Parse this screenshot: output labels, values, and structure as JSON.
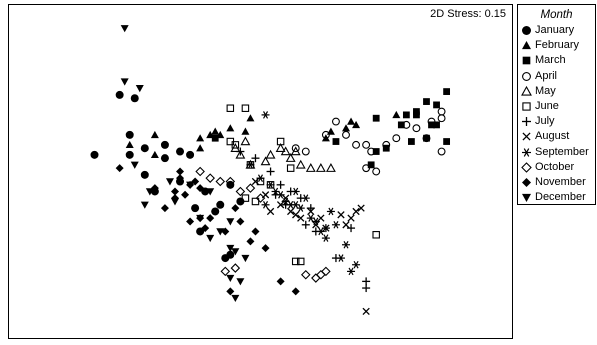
{
  "chart_data": {
    "type": "scatter",
    "annotation": "2D Stress: 0.15",
    "legend_title": "Month",
    "legend_position": "right",
    "grid": false,
    "xlim": [
      0,
      100
    ],
    "ylim": [
      0,
      100
    ],
    "series": [
      {
        "name": "January",
        "marker": "circle-filled",
        "points": [
          [
            22,
            73
          ],
          [
            25,
            72
          ],
          [
            17,
            55
          ],
          [
            24,
            61
          ],
          [
            27,
            57
          ],
          [
            24,
            55
          ],
          [
            27,
            49
          ],
          [
            29,
            44
          ],
          [
            31,
            54
          ],
          [
            34,
            47
          ],
          [
            31,
            58
          ],
          [
            34,
            56
          ],
          [
            37,
            39
          ],
          [
            39,
            44
          ],
          [
            38,
            32
          ],
          [
            41,
            38
          ],
          [
            44,
            46
          ],
          [
            44,
            25
          ],
          [
            46,
            41
          ],
          [
            43,
            24
          ],
          [
            42,
            40
          ],
          [
            36,
            55
          ]
        ]
      },
      {
        "name": "February",
        "marker": "triangle-filled",
        "points": [
          [
            24,
            58
          ],
          [
            29,
            61
          ],
          [
            29,
            55
          ],
          [
            38,
            60
          ],
          [
            40,
            61
          ],
          [
            41,
            62
          ],
          [
            42,
            61
          ],
          [
            44,
            63
          ],
          [
            47,
            62
          ],
          [
            48,
            66
          ],
          [
            63,
            60
          ],
          [
            64,
            62
          ],
          [
            67,
            63
          ],
          [
            68,
            65
          ],
          [
            69,
            64
          ],
          [
            77,
            67
          ],
          [
            38,
            57
          ]
        ]
      },
      {
        "name": "March",
        "marker": "square-filled",
        "points": [
          [
            41,
            60
          ],
          [
            65,
            59
          ],
          [
            73,
            56
          ],
          [
            72,
            52
          ],
          [
            80,
            59
          ],
          [
            83,
            60
          ],
          [
            84,
            64
          ],
          [
            81,
            68
          ],
          [
            83,
            71
          ],
          [
            85,
            70
          ],
          [
            87,
            74
          ],
          [
            85,
            64
          ],
          [
            87,
            59
          ],
          [
            79,
            67
          ],
          [
            81,
            67
          ],
          [
            75,
            57
          ],
          [
            73,
            66
          ],
          [
            78,
            64
          ]
        ]
      },
      {
        "name": "April",
        "marker": "circle-open",
        "points": [
          [
            59,
            56
          ],
          [
            63,
            61
          ],
          [
            65,
            65
          ],
          [
            67,
            61
          ],
          [
            69,
            58
          ],
          [
            71,
            58
          ],
          [
            72,
            56
          ],
          [
            75,
            58
          ],
          [
            77,
            60
          ],
          [
            79,
            64
          ],
          [
            81,
            63
          ],
          [
            83,
            60
          ],
          [
            84,
            65
          ],
          [
            86,
            66
          ],
          [
            86,
            68
          ],
          [
            57,
            57
          ],
          [
            71,
            51
          ],
          [
            73,
            50
          ],
          [
            86,
            56
          ]
        ]
      },
      {
        "name": "May",
        "marker": "triangle-open",
        "points": [
          [
            45,
            57
          ],
          [
            48,
            52
          ],
          [
            51,
            53
          ],
          [
            52,
            55
          ],
          [
            54,
            57
          ],
          [
            56,
            54
          ],
          [
            57,
            56
          ],
          [
            58,
            52
          ],
          [
            60,
            51
          ],
          [
            62,
            51
          ],
          [
            64,
            51
          ],
          [
            47,
            59
          ],
          [
            55,
            56
          ],
          [
            46,
            55
          ]
        ]
      },
      {
        "name": "June",
        "marker": "square-open",
        "points": [
          [
            44,
            69
          ],
          [
            47,
            69
          ],
          [
            44,
            59
          ],
          [
            45,
            58
          ],
          [
            54,
            59
          ],
          [
            56,
            51
          ],
          [
            47,
            42
          ],
          [
            49,
            41
          ],
          [
            50,
            47
          ],
          [
            52,
            46
          ],
          [
            57,
            23
          ],
          [
            58,
            23
          ],
          [
            73,
            31
          ],
          [
            48,
            52
          ]
        ]
      },
      {
        "name": "July",
        "marker": "plus",
        "points": [
          [
            46,
            56
          ],
          [
            49,
            54
          ],
          [
            52,
            50
          ],
          [
            54,
            46
          ],
          [
            56,
            44
          ],
          [
            58,
            42
          ],
          [
            60,
            39
          ],
          [
            59,
            34
          ],
          [
            61,
            32
          ],
          [
            63,
            33
          ],
          [
            65,
            24
          ],
          [
            71,
            17
          ],
          [
            71,
            15
          ],
          [
            68,
            33
          ],
          [
            55,
            40
          ],
          [
            53,
            43
          ]
        ]
      },
      {
        "name": "August",
        "marker": "x",
        "points": [
          [
            49,
            47
          ],
          [
            51,
            43
          ],
          [
            55,
            42
          ],
          [
            56,
            38
          ],
          [
            57,
            37
          ],
          [
            58,
            36
          ],
          [
            60,
            38
          ],
          [
            61,
            34
          ],
          [
            63,
            33
          ],
          [
            66,
            37
          ],
          [
            70,
            39
          ],
          [
            69,
            38
          ],
          [
            68,
            36
          ],
          [
            67,
            34
          ],
          [
            71,
            8
          ],
          [
            52,
            38
          ],
          [
            54,
            40
          ],
          [
            62,
            36
          ]
        ]
      },
      {
        "name": "September",
        "marker": "asterisk",
        "points": [
          [
            51,
            67
          ],
          [
            48,
            52
          ],
          [
            50,
            48
          ],
          [
            52,
            46
          ],
          [
            53,
            44
          ],
          [
            54,
            43
          ],
          [
            55,
            41
          ],
          [
            56,
            40
          ],
          [
            57,
            40
          ],
          [
            58,
            39
          ],
          [
            59,
            42
          ],
          [
            60,
            36
          ],
          [
            61,
            35
          ],
          [
            62,
            32
          ],
          [
            63,
            30
          ],
          [
            64,
            38
          ],
          [
            65,
            34
          ],
          [
            67,
            28
          ],
          [
            69,
            22
          ],
          [
            68,
            20
          ],
          [
            66,
            24
          ],
          [
            57,
            44
          ],
          [
            51,
            40
          ]
        ]
      },
      {
        "name": "October",
        "marker": "diamond-open",
        "points": [
          [
            38,
            50
          ],
          [
            40,
            48
          ],
          [
            42,
            47
          ],
          [
            44,
            47
          ],
          [
            46,
            44
          ],
          [
            48,
            45
          ],
          [
            50,
            42
          ],
          [
            43,
            20
          ],
          [
            45,
            21
          ],
          [
            59,
            19
          ],
          [
            61,
            18
          ],
          [
            62,
            19
          ],
          [
            63,
            20
          ]
        ]
      },
      {
        "name": "November",
        "marker": "diamond-filled",
        "points": [
          [
            22,
            51
          ],
          [
            29,
            45
          ],
          [
            31,
            39
          ],
          [
            33,
            44
          ],
          [
            34,
            48
          ],
          [
            34,
            50
          ],
          [
            35,
            43
          ],
          [
            36,
            46
          ],
          [
            37,
            47
          ],
          [
            38,
            45
          ],
          [
            36,
            35
          ],
          [
            38,
            36
          ],
          [
            39,
            33
          ],
          [
            40,
            36
          ],
          [
            41,
            38
          ],
          [
            43,
            32
          ],
          [
            45,
            39
          ],
          [
            46,
            35
          ],
          [
            48,
            29
          ],
          [
            49,
            32
          ],
          [
            51,
            27
          ],
          [
            54,
            17
          ],
          [
            57,
            14
          ],
          [
            44,
            14
          ],
          [
            33,
            42
          ]
        ]
      },
      {
        "name": "December",
        "marker": "triangle-down-filled",
        "points": [
          [
            23,
            93
          ],
          [
            23,
            77
          ],
          [
            26,
            75
          ],
          [
            25,
            52
          ],
          [
            28,
            44
          ],
          [
            27,
            40
          ],
          [
            32,
            47
          ],
          [
            33,
            41
          ],
          [
            36,
            46
          ],
          [
            38,
            36
          ],
          [
            40,
            44
          ],
          [
            40,
            30
          ],
          [
            42,
            32
          ],
          [
            44,
            35
          ],
          [
            44,
            27
          ],
          [
            45,
            12
          ],
          [
            46,
            17
          ],
          [
            47,
            24
          ],
          [
            45,
            26
          ],
          [
            44,
            18
          ]
        ]
      }
    ]
  }
}
